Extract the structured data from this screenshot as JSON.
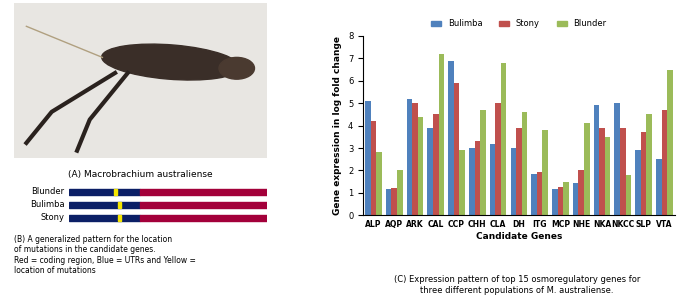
{
  "photo": {
    "caption": "(A) Macrobrachium australiense"
  },
  "diagram": {
    "rows": [
      "Blunder",
      "Bulimba",
      "Stony"
    ],
    "caption": "(B) A generalized pattern for the location\nof mutations in the candidate genes.\nRed = coding region, Blue = UTRs and Yellow =\nlocation of mutations"
  },
  "chart_data": {
    "type": "bar",
    "caption": "(C) Expression pattern of top 15 osmoregulatory genes for\nthree different populations of M. australiense.",
    "x_label": "Candidate Genes",
    "y_label": "Gene expression in log fold change",
    "categories": [
      "ALP",
      "AQP",
      "ARK",
      "CAL",
      "CCP",
      "CHH",
      "CLA",
      "DH",
      "ITG",
      "MCP",
      "NHE",
      "NKA",
      "NKCC",
      "SLP",
      "VTA"
    ],
    "series": [
      {
        "name": "Bulimba",
        "color": "#4f81bd",
        "values": [
          5.1,
          1.15,
          5.2,
          3.9,
          6.9,
          3.0,
          3.2,
          3.0,
          1.85,
          1.15,
          1.45,
          4.9,
          5.0,
          2.9,
          2.5
        ]
      },
      {
        "name": "Stony",
        "color": "#c0504d",
        "values": [
          4.2,
          1.2,
          5.0,
          4.5,
          5.9,
          3.3,
          5.0,
          3.9,
          1.95,
          1.25,
          2.0,
          3.9,
          3.9,
          3.7,
          4.7
        ]
      },
      {
        "name": "Blunder",
        "color": "#9bbb59",
        "values": [
          2.8,
          2.0,
          4.4,
          7.2,
          2.9,
          4.7,
          6.8,
          4.6,
          3.8,
          1.5,
          4.1,
          3.5,
          1.8,
          4.5,
          6.5
        ]
      }
    ],
    "ylim": [
      0,
      8
    ],
    "yticks": [
      0,
      1,
      2,
      3,
      4,
      5,
      6,
      7,
      8
    ],
    "grid": false,
    "legend": "top"
  }
}
